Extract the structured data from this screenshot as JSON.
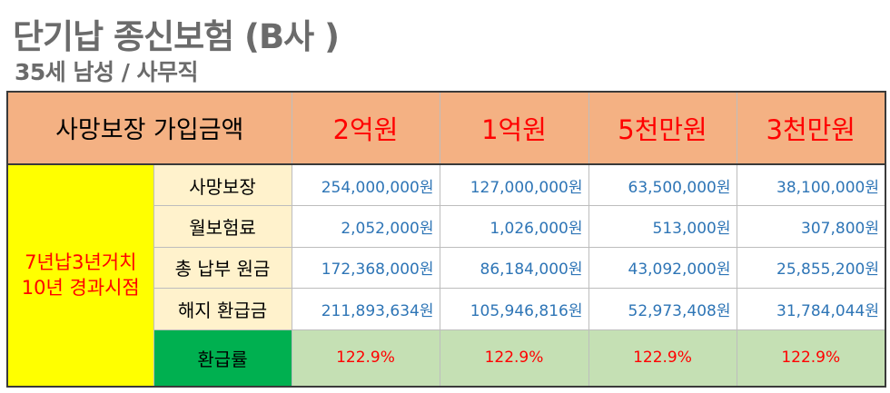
{
  "title": "단기납 종신보험 (B사 )",
  "subtitle": "35세 남성 / 사무직",
  "table": {
    "header_label": "사망보장 가입금액",
    "columns": [
      "2억원",
      "1억원",
      "5천만원",
      "3천만원"
    ],
    "period_label_line1": "7년납3년거치",
    "period_label_line2": "10년 경과시점",
    "rows": [
      {
        "label": "사망보장",
        "values": [
          "254,000,000원",
          "127,000,000원",
          "63,500,000원",
          "38,100,000원"
        ]
      },
      {
        "label": "월보험료",
        "values": [
          "2,052,000원",
          "1,026,000원",
          "513,000원",
          "307,800원"
        ]
      },
      {
        "label": "총 납부 원금",
        "values": [
          "172,368,000원",
          "86,184,000원",
          "43,092,000원",
          "25,855,200원"
        ]
      },
      {
        "label": "해지 환급금",
        "values": [
          "211,893,634원",
          "105,946,816원",
          "52,973,408원",
          "31,784,044원"
        ]
      }
    ],
    "rate_row": {
      "label": "환급률",
      "values": [
        "122.9%",
        "122.9%",
        "122.9%",
        "122.9%"
      ]
    }
  },
  "colors": {
    "header_bg": "#f4b183",
    "amount_text": "#ff0000",
    "period_bg": "#ffff00",
    "row_label_bg": "#fff2cc",
    "rate_label_bg": "#00b050",
    "rate_value_bg": "#c5e0b4",
    "value_text": "#2e75b6"
  }
}
